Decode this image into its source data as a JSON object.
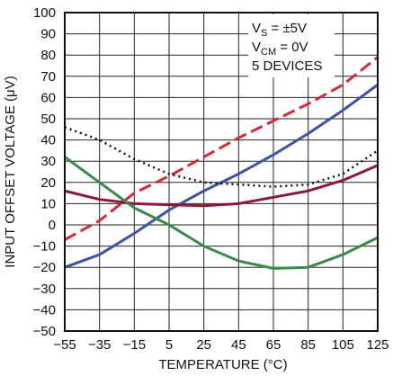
{
  "chart_data": {
    "type": "line",
    "xlabel": "TEMPERATURE (°C)",
    "ylabel": "INPUT OFFSET VOLTAGE (μV)",
    "annotation": [
      [
        "V",
        "S",
        " = ±5V"
      ],
      [
        "V",
        "CM",
        " = 0V"
      ],
      [
        "5 DEVICES"
      ]
    ],
    "x": [
      -55,
      -35,
      -15,
      5,
      25,
      45,
      65,
      85,
      105,
      125
    ],
    "series": [
      {
        "color": "#3a53a4",
        "dash": "solid",
        "values": [
          -20,
          -14,
          -4,
          7,
          16,
          24,
          33,
          43,
          54,
          66
        ]
      },
      {
        "color": "#d7283b",
        "dash": "dashed",
        "values": [
          -7,
          2,
          15,
          23,
          32,
          41,
          49,
          57,
          66,
          79
        ]
      },
      {
        "color": "#111111",
        "dash": "dotted",
        "values": [
          46,
          40,
          31,
          24,
          20,
          19,
          18,
          19,
          24,
          35
        ]
      },
      {
        "color": "#8b1a3a",
        "dash": "solid",
        "values": [
          16,
          12,
          10,
          9.5,
          9,
          10,
          13,
          16,
          21,
          28
        ]
      },
      {
        "color": "#3a8a4a",
        "dash": "solid",
        "values": [
          32,
          20,
          8,
          0,
          -10,
          -17,
          -20.5,
          -20,
          -14,
          -6
        ]
      }
    ],
    "xlim": [
      -55,
      125
    ],
    "ylim": [
      -50,
      100
    ],
    "xticks": [
      {
        "value": -55,
        "label": "−55"
      },
      {
        "value": -35,
        "label": "−35"
      },
      {
        "value": -15,
        "label": "−15"
      },
      5,
      25,
      45,
      65,
      85,
      105,
      125
    ],
    "yticks": [
      {
        "value": -50,
        "label": "−50"
      },
      {
        "value": -40,
        "label": "−40"
      },
      {
        "value": -30,
        "label": "−30"
      },
      {
        "value": -20,
        "label": "−20"
      },
      {
        "value": -10,
        "label": "−10"
      },
      0,
      10,
      20,
      30,
      40,
      50,
      60,
      70,
      80,
      90,
      100
    ],
    "grid": true
  }
}
